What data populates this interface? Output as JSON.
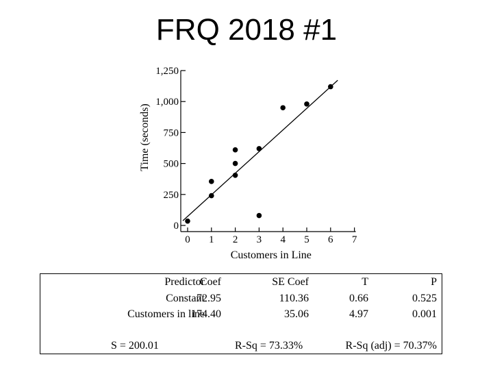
{
  "slide": {
    "title": "FRQ 2018 #1"
  },
  "colors": {
    "ink": "#000000",
    "background": "#ffffff"
  },
  "chart_data": {
    "type": "scatter",
    "title": "",
    "xlabel": "Customers in Line",
    "ylabel": "Time (seconds)",
    "xlim": [
      0,
      7
    ],
    "ylim": [
      0,
      1250
    ],
    "x_ticks": [
      0,
      1,
      2,
      3,
      4,
      5,
      6,
      7
    ],
    "x_tick_labels": [
      "0",
      "1",
      "2",
      "3",
      "4",
      "5",
      "6",
      "7"
    ],
    "y_ticks": [
      0,
      250,
      500,
      750,
      1000,
      1250
    ],
    "y_tick_labels": [
      "0",
      "250",
      "500",
      "750",
      "1,000",
      "1,250"
    ],
    "points": [
      {
        "x": 0,
        "y": 35
      },
      {
        "x": 1,
        "y": 355
      },
      {
        "x": 1,
        "y": 240
      },
      {
        "x": 2,
        "y": 610
      },
      {
        "x": 2,
        "y": 500
      },
      {
        "x": 2,
        "y": 405
      },
      {
        "x": 3,
        "y": 620
      },
      {
        "x": 3,
        "y": 80
      },
      {
        "x": 4,
        "y": 950
      },
      {
        "x": 5,
        "y": 980
      },
      {
        "x": 6,
        "y": 1120
      }
    ],
    "regression_line": {
      "intercept": 72.95,
      "slope": 174.4,
      "x_range": [
        -0.2,
        6.3
      ]
    },
    "grid": false,
    "legend": "none"
  },
  "regression": {
    "headers": {
      "predictor": "Predictor",
      "coef": "Coef",
      "se_coef": "SE Coef",
      "t": "T",
      "p": "P"
    },
    "rows": [
      {
        "predictor": "Constant",
        "coef": "72.95",
        "se_coef": "110.36",
        "t": "0.66",
        "p": "0.525"
      },
      {
        "predictor": "Customers in line",
        "coef": "174.40",
        "se_coef": "35.06",
        "t": "4.97",
        "p": "0.001"
      }
    ],
    "summary": {
      "s": "S = 200.01",
      "r_sq": "R-Sq = 73.33%",
      "r_sq_adj": "R-Sq (adj) = 70.37%"
    }
  }
}
